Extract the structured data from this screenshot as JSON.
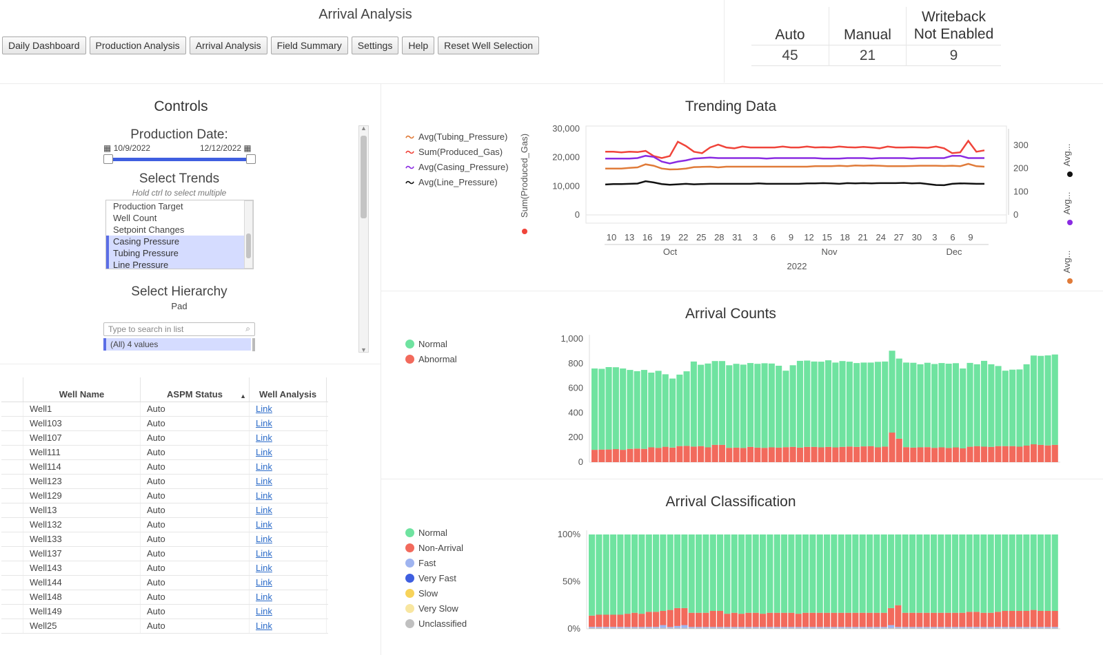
{
  "header": {
    "title": "Arrival Analysis",
    "nav": [
      "Daily Dashboard",
      "Production Analysis",
      "Arrival Analysis",
      "Field Summary",
      "Settings",
      "Help",
      "Reset Well Selection"
    ]
  },
  "kpis": [
    {
      "label": "Auto",
      "value": "45"
    },
    {
      "label": "Manual",
      "value": "21"
    },
    {
      "label": "Writeback\nNot Enabled",
      "label_line1": "Writeback",
      "label_line2": "Not Enabled",
      "value": "9"
    }
  ],
  "controls": {
    "title": "Controls",
    "date_label": "Production Date:",
    "date_start": "10/9/2022",
    "date_end": "12/12/2022",
    "trends_title": "Select Trends",
    "trends_hint": "Hold ctrl to select multiple",
    "trend_options": [
      {
        "label": "Production Target",
        "selected": false
      },
      {
        "label": "Well Count",
        "selected": false
      },
      {
        "label": "Setpoint Changes",
        "selected": false
      },
      {
        "label": "Casing Pressure",
        "selected": true
      },
      {
        "label": "Tubing Pressure",
        "selected": true
      },
      {
        "label": "Line Pressure",
        "selected": true
      }
    ],
    "hierarchy_title": "Select Hierarchy",
    "hierarchy_level": "Pad",
    "search_placeholder": "Type to search in list",
    "hierarchy_all": "(All) 4 values"
  },
  "table": {
    "columns": [
      "Well Name",
      "ASPM Status",
      "Well Analysis"
    ],
    "rows": [
      [
        "Well1",
        "Auto",
        "Link"
      ],
      [
        "Well103",
        "Auto",
        "Link"
      ],
      [
        "Well107",
        "Auto",
        "Link"
      ],
      [
        "Well111",
        "Auto",
        "Link"
      ],
      [
        "Well114",
        "Auto",
        "Link"
      ],
      [
        "Well123",
        "Auto",
        "Link"
      ],
      [
        "Well129",
        "Auto",
        "Link"
      ],
      [
        "Well13",
        "Auto",
        "Link"
      ],
      [
        "Well132",
        "Auto",
        "Link"
      ],
      [
        "Well133",
        "Auto",
        "Link"
      ],
      [
        "Well137",
        "Auto",
        "Link"
      ],
      [
        "Well143",
        "Auto",
        "Link"
      ],
      [
        "Well144",
        "Auto",
        "Link"
      ],
      [
        "Well148",
        "Auto",
        "Link"
      ],
      [
        "Well149",
        "Auto",
        "Link"
      ],
      [
        "Well25",
        "Auto",
        "Link"
      ]
    ]
  },
  "colors": {
    "normal": "#6fe3a0",
    "abnormal": "#f26a5c",
    "tubing": "#e07b39",
    "gas": "#f0443a",
    "casing": "#8a2be2",
    "line": "#111111",
    "fast": "#9fb4f0",
    "very_fast": "#3f5fe0",
    "slow": "#f7d35a",
    "very_slow": "#f8e6a0",
    "unclassified": "#c0c0c0"
  },
  "trending": {
    "title": "Trending Data",
    "legend": [
      "Avg(Tubing_Pressure)",
      "Sum(Produced_Gas)",
      "Avg(Casing_Pressure)",
      "Avg(Line_Pressure)"
    ],
    "left_axis_title": "Sum(Produced_Gas)",
    "right_axis_titles": [
      "Avg...",
      "Avg...",
      "Avg..."
    ],
    "left_ticks": [
      "30,000",
      "20,000",
      "10,000",
      "0"
    ],
    "right_ticks": [
      "300",
      "200",
      "100",
      "0"
    ],
    "x_day_ticks": [
      "10",
      "13",
      "16",
      "19",
      "22",
      "25",
      "28",
      "31",
      "3",
      "6",
      "9",
      "12",
      "15",
      "18",
      "21",
      "24",
      "27",
      "30",
      "3",
      "6",
      "9"
    ],
    "x_months": [
      "Oct",
      "Nov",
      "Dec"
    ],
    "x_year": "2022"
  },
  "arrival_counts": {
    "title": "Arrival Counts",
    "legend": [
      "Normal",
      "Abnormal"
    ],
    "y_ticks": [
      "1,000",
      "800",
      "600",
      "400",
      "200",
      "0"
    ]
  },
  "arrival_classification": {
    "title": "Arrival Classification",
    "legend": [
      "Normal",
      "Non-Arrival",
      "Fast",
      "Very Fast",
      "Slow",
      "Very Slow",
      "Unclassified"
    ],
    "y_ticks": [
      "100%",
      "50%",
      "0%"
    ]
  },
  "chart_data": [
    {
      "type": "line",
      "title": "Trending Data",
      "x_start": "2022-10-09",
      "x_end": "2022-12-12",
      "ylim_left": [
        0,
        30000
      ],
      "ylim_right": [
        0,
        300
      ],
      "series": [
        {
          "name": "Sum(Produced_Gas)",
          "axis": "left",
          "values": [
            22000,
            22000,
            21800,
            22000,
            21900,
            22300,
            20500,
            19800,
            20500,
            25500,
            24000,
            22000,
            21500,
            23500,
            24500,
            23500,
            23200,
            23800,
            23500,
            23500,
            23500,
            23500,
            23800,
            23500,
            23500,
            23800,
            23500,
            23600,
            23500,
            23800,
            23600,
            23500,
            23700,
            23500,
            23200,
            23800,
            23500,
            23500,
            23600,
            23500,
            23400,
            23800,
            23200,
            21500,
            21800,
            25800,
            22000,
            22500
          ]
        },
        {
          "name": "Avg(Casing_Pressure)",
          "axis": "right",
          "values": [
            243,
            243,
            243,
            243,
            245,
            255,
            250,
            230,
            222,
            230,
            235,
            243,
            245,
            247,
            245,
            245,
            245,
            245,
            245,
            245,
            243,
            245,
            245,
            245,
            245,
            245,
            245,
            243,
            243,
            243,
            245,
            245,
            245,
            243,
            245,
            245,
            245,
            245,
            243,
            245,
            245,
            245,
            245,
            255,
            255,
            245,
            245,
            245
          ]
        },
        {
          "name": "Avg(Tubing_Pressure)",
          "axis": "right",
          "values": [
            200,
            200,
            200,
            203,
            205,
            218,
            212,
            200,
            196,
            197,
            200,
            206,
            207,
            208,
            205,
            208,
            208,
            208,
            208,
            208,
            208,
            208,
            208,
            208,
            208,
            208,
            210,
            210,
            210,
            212,
            210,
            213,
            212,
            213,
            212,
            210,
            210,
            210,
            211,
            212,
            212,
            212,
            211,
            212,
            210,
            220,
            210,
            208
          ]
        },
        {
          "name": "Avg(Line_Pressure)",
          "axis": "right",
          "values": [
            131,
            133,
            133,
            134,
            135,
            145,
            140,
            133,
            130,
            132,
            134,
            132,
            133,
            134,
            134,
            134,
            134,
            134,
            134,
            136,
            134,
            134,
            134,
            134,
            134,
            136,
            136,
            137,
            136,
            134,
            137,
            136,
            137,
            136,
            137,
            137,
            137,
            138,
            136,
            137,
            133,
            129,
            128,
            134,
            136,
            135,
            134,
            134
          ]
        }
      ]
    },
    {
      "type": "bar",
      "stacked": true,
      "title": "Arrival Counts",
      "ylim": [
        0,
        1000
      ],
      "series": [
        {
          "name": "Abnormal",
          "values": [
            100,
            102,
            103,
            106,
            100,
            108,
            110,
            108,
            120,
            116,
            125,
            118,
            130,
            132,
            126,
            130,
            120,
            140,
            140,
            116,
            118,
            115,
            124,
            118,
            116,
            120,
            118,
            122,
            124,
            118,
            124,
            124,
            120,
            124,
            120,
            124,
            127,
            124,
            128,
            130,
            120,
            126,
            240,
            190,
            122,
            118,
            120,
            122,
            116,
            120,
            115,
            120,
            112,
            125,
            130,
            126,
            124,
            130,
            130,
            130,
            126,
            134,
            145,
            140,
            136,
            140
          ]
        },
        {
          "name": "Normal",
          "values": [
            660,
            655,
            668,
            664,
            660,
            640,
            628,
            640,
            606,
            625,
            588,
            560,
            580,
            605,
            690,
            660,
            680,
            680,
            680,
            670,
            680,
            676,
            680,
            680,
            686,
            680,
            664,
            620,
            662,
            704,
            700,
            692,
            695,
            702,
            688,
            696,
            688,
            680,
            680,
            678,
            694,
            690,
            664,
            650,
            686,
            688,
            674,
            684,
            680,
            684,
            684,
            683,
            648,
            680,
            664,
            696,
            670,
            650,
            612,
            620,
            626,
            660,
            720,
            722,
            730,
            733
          ]
        }
      ]
    },
    {
      "type": "bar",
      "stacked": true,
      "normalized": true,
      "title": "Arrival Classification",
      "ylim": [
        0,
        100
      ],
      "series": [
        {
          "name": "Unclassified",
          "values": [
            1,
            1,
            1,
            1,
            1,
            1,
            1,
            1,
            1,
            1,
            1,
            1,
            1,
            1,
            1,
            1,
            1,
            1,
            1,
            1,
            1,
            1,
            1,
            1,
            1,
            1,
            1,
            1,
            1,
            1,
            1,
            1,
            1,
            1,
            1,
            1,
            1,
            1,
            1,
            1,
            1,
            1,
            1,
            1,
            1,
            1,
            1,
            1,
            1,
            1,
            1,
            1,
            1,
            1,
            1,
            1,
            1,
            1,
            1,
            1,
            1,
            1,
            1,
            1,
            1,
            1
          ]
        },
        {
          "name": "Very Slow",
          "values": [
            0,
            0,
            0,
            0,
            0,
            0,
            0,
            0,
            0,
            0,
            0,
            0,
            0,
            0,
            0,
            0,
            0,
            0,
            0,
            0,
            0,
            0,
            0,
            0,
            0,
            0,
            0,
            0,
            0,
            0,
            0,
            0,
            0,
            0,
            0,
            0,
            0,
            0,
            0,
            0,
            0,
            0,
            0,
            0,
            0,
            0,
            0,
            0,
            0,
            0,
            0,
            0,
            0,
            0,
            0,
            0,
            0,
            0,
            0,
            0,
            0,
            0,
            0,
            0,
            0,
            0
          ]
        },
        {
          "name": "Slow",
          "values": [
            0,
            0,
            0,
            0,
            0,
            0,
            0,
            0,
            0,
            0,
            0,
            0,
            0,
            0,
            0,
            0,
            0,
            0,
            0,
            0,
            0,
            0,
            0,
            0,
            0,
            0,
            0,
            0,
            0,
            0,
            0,
            0,
            0,
            0,
            0,
            0,
            0,
            0,
            0,
            0,
            0,
            0,
            0,
            0,
            0,
            0,
            0,
            0,
            0,
            0,
            0,
            0,
            0,
            0,
            0,
            0,
            0,
            0,
            0,
            0,
            0,
            0,
            0,
            0,
            0,
            0
          ]
        },
        {
          "name": "Very Fast",
          "values": [
            0,
            0,
            0,
            0,
            0,
            0,
            0,
            0,
            0,
            0,
            0,
            0,
            0,
            0,
            0,
            0,
            0,
            0,
            0,
            0,
            0,
            0,
            0,
            0,
            0,
            0,
            0,
            0,
            0,
            0,
            0,
            0,
            0,
            0,
            0,
            0,
            0,
            0,
            0,
            0,
            0,
            0,
            0,
            0,
            0,
            0,
            0,
            0,
            0,
            0,
            0,
            0,
            0,
            0,
            0,
            0,
            0,
            0,
            0,
            0,
            0,
            0,
            0,
            0,
            0,
            0
          ]
        },
        {
          "name": "Fast",
          "values": [
            1,
            1,
            1,
            1,
            1,
            1,
            1,
            1,
            1,
            1,
            3,
            1,
            2,
            3,
            1,
            1,
            1,
            1,
            1,
            1,
            1,
            1,
            1,
            1,
            1,
            1,
            1,
            1,
            1,
            1,
            1,
            1,
            1,
            1,
            1,
            1,
            1,
            1,
            1,
            1,
            1,
            1,
            3,
            1,
            1,
            1,
            1,
            1,
            1,
            1,
            1,
            1,
            1,
            1,
            1,
            1,
            1,
            1,
            1,
            1,
            1,
            1,
            1,
            1,
            1,
            1
          ]
        },
        {
          "name": "Non-Arrival",
          "values": [
            12,
            13,
            13,
            13,
            13,
            14,
            15,
            14,
            16,
            16,
            15,
            18,
            19,
            18,
            15,
            15,
            15,
            17,
            17,
            14,
            15,
            14,
            15,
            15,
            14,
            15,
            15,
            15,
            15,
            14,
            15,
            15,
            15,
            15,
            15,
            15,
            15,
            15,
            15,
            15,
            15,
            15,
            18,
            23,
            15,
            15,
            15,
            15,
            15,
            15,
            15,
            15,
            15,
            16,
            16,
            15,
            15,
            16,
            17,
            17,
            17,
            17,
            18,
            17,
            17,
            17
          ]
        },
        {
          "name": "Normal",
          "values": [
            86,
            85,
            85,
            85,
            85,
            84,
            83,
            84,
            82,
            82,
            81,
            80,
            78,
            78,
            83,
            83,
            83,
            81,
            81,
            84,
            83,
            84,
            83,
            83,
            84,
            83,
            83,
            83,
            83,
            84,
            83,
            83,
            83,
            83,
            83,
            83,
            83,
            83,
            83,
            83,
            83,
            83,
            78,
            75,
            83,
            83,
            83,
            83,
            83,
            83,
            83,
            83,
            83,
            82,
            82,
            83,
            83,
            82,
            81,
            81,
            81,
            81,
            80,
            81,
            81,
            81
          ]
        }
      ]
    }
  ]
}
